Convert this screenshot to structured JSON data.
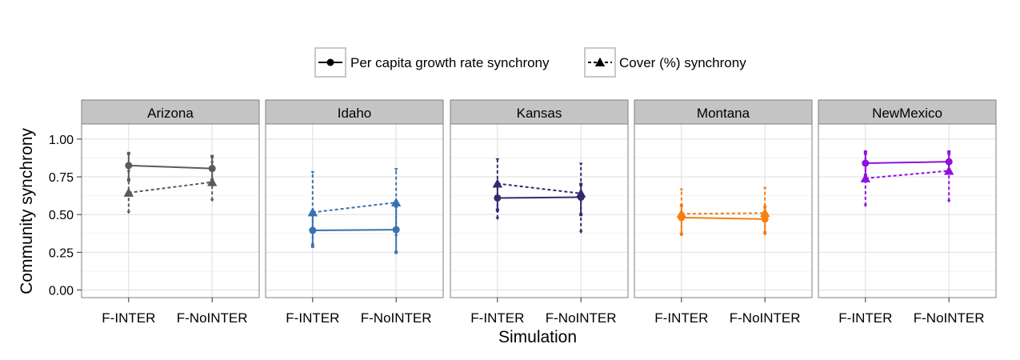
{
  "chart_data": {
    "type": "line",
    "title": "",
    "xlabel": "Simulation",
    "ylabel": "Community synchrony",
    "ylim": [
      -0.05,
      1.1
    ],
    "yticks": [
      0.0,
      0.25,
      0.5,
      0.75,
      1.0
    ],
    "ytick_labels": [
      "0.00",
      "0.25",
      "0.50",
      "0.75",
      "1.00"
    ],
    "categories": [
      "F-INTER",
      "F-NoINTER"
    ],
    "category_labels": [
      "F-INTER",
      "F-NoINTER"
    ],
    "grid": true,
    "legend": {
      "placement": "top",
      "entries": [
        {
          "label": "Per capita growth rate synchrony",
          "marker": "circle",
          "line": "solid"
        },
        {
          "label": "Cover (%) synchrony",
          "marker": "triangle",
          "line": "dashed"
        }
      ]
    },
    "panels": [
      {
        "name": "Arizona",
        "color": "#5a5a5a",
        "series": [
          {
            "legend_entry": 0,
            "values": [
              0.825,
              0.805
            ],
            "lower": [
              0.73,
              0.73
            ],
            "upper": [
              0.905,
              0.885
            ]
          },
          {
            "legend_entry": 1,
            "values": [
              0.645,
              0.715
            ],
            "lower": [
              0.515,
              0.595
            ],
            "upper": [
              0.785,
              0.845
            ]
          }
        ]
      },
      {
        "name": "Idaho",
        "color": "#3a72b0",
        "series": [
          {
            "legend_entry": 0,
            "values": [
              0.395,
              0.4
            ],
            "lower": [
              0.29,
              0.25
            ],
            "upper": [
              0.5,
              0.555
            ]
          },
          {
            "legend_entry": 1,
            "values": [
              0.515,
              0.58
            ],
            "lower": [
              0.3,
              0.36
            ],
            "upper": [
              0.78,
              0.8
            ]
          }
        ]
      },
      {
        "name": "Kansas",
        "color": "#35296e",
        "series": [
          {
            "legend_entry": 0,
            "values": [
              0.61,
              0.615
            ],
            "lower": [
              0.53,
              0.5
            ],
            "upper": [
              0.69,
              0.7
            ]
          },
          {
            "legend_entry": 1,
            "values": [
              0.705,
              0.64
            ],
            "lower": [
              0.475,
              0.385
            ],
            "upper": [
              0.865,
              0.835
            ]
          }
        ]
      },
      {
        "name": "Montana",
        "color": "#f47f12",
        "series": [
          {
            "legend_entry": 0,
            "values": [
              0.48,
              0.47
            ],
            "lower": [
              0.37,
              0.38
            ],
            "upper": [
              0.56,
              0.55
            ]
          },
          {
            "legend_entry": 1,
            "values": [
              0.505,
              0.51
            ],
            "lower": [
              0.37,
              0.37
            ],
            "upper": [
              0.665,
              0.675
            ]
          }
        ]
      },
      {
        "name": "NewMexico",
        "color": "#9010de",
        "series": [
          {
            "legend_entry": 0,
            "values": [
              0.84,
              0.85
            ],
            "lower": [
              0.76,
              0.78
            ],
            "upper": [
              0.915,
              0.915
            ]
          },
          {
            "legend_entry": 1,
            "values": [
              0.74,
              0.79
            ],
            "lower": [
              0.56,
              0.59
            ],
            "upper": [
              0.895,
              0.895
            ]
          }
        ]
      }
    ]
  }
}
